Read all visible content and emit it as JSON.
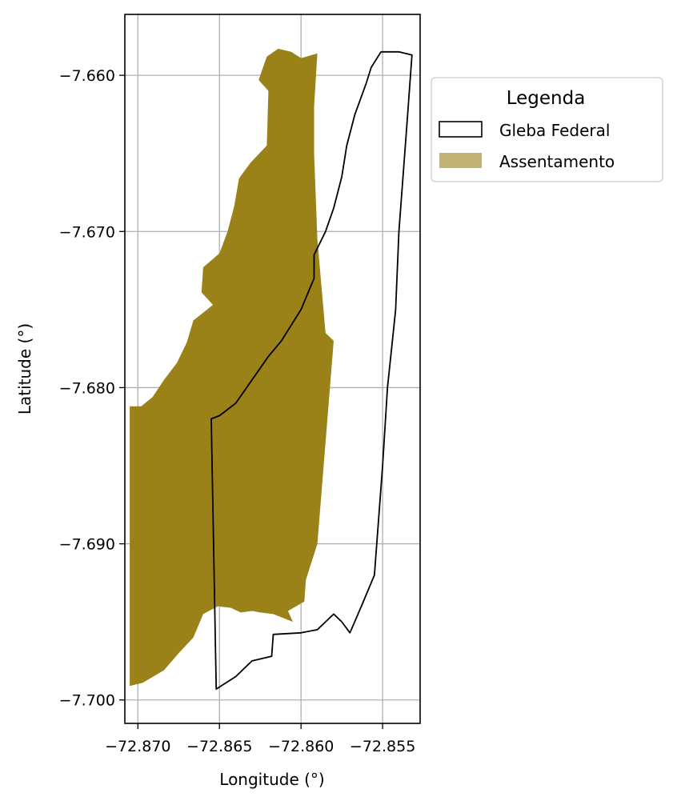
{
  "chart_data": {
    "type": "map",
    "xlabel": "Longitude (°)",
    "ylabel": "Latitude (°)",
    "xlim": [
      -72.8708,
      -72.8527
    ],
    "ylim": [
      -7.7015,
      -7.6561
    ],
    "x_ticks": [
      {
        "value": -72.87,
        "label": "−72.870"
      },
      {
        "value": -72.865,
        "label": "−72.865"
      },
      {
        "value": -72.86,
        "label": "−72.860"
      },
      {
        "value": -72.855,
        "label": "−72.855"
      }
    ],
    "y_ticks": [
      {
        "value": -7.66,
        "label": "−7.660"
      },
      {
        "value": -7.67,
        "label": "−7.670"
      },
      {
        "value": -7.68,
        "label": "−7.680"
      },
      {
        "value": -7.69,
        "label": "−7.690"
      },
      {
        "value": -7.7,
        "label": "−7.700"
      }
    ],
    "grid": true,
    "legend": {
      "title": "Legenda",
      "placement": "outside-right-top",
      "entries": [
        {
          "label": "Gleba Federal",
          "style": "outline",
          "edge_color": "#000000",
          "face_color": "#ffffff"
        },
        {
          "label": "Assentamento",
          "style": "fill",
          "face_color": "#c0b274"
        }
      ]
    },
    "layers": [
      {
        "name": "Assentamento",
        "fill": "#9a8219",
        "stroke": "none",
        "coords": [
          [
            -72.859,
            -7.6586
          ],
          [
            -72.86,
            -7.6589
          ],
          [
            -72.8606,
            -7.6585
          ],
          [
            -72.8614,
            -7.6583
          ],
          [
            -72.8621,
            -7.6588
          ],
          [
            -72.8626,
            -7.6603
          ],
          [
            -72.862,
            -7.661
          ],
          [
            -72.8621,
            -7.6645
          ],
          [
            -72.8631,
            -7.6656
          ],
          [
            -72.8638,
            -7.6666
          ],
          [
            -72.8641,
            -7.6684
          ],
          [
            -72.8645,
            -7.67
          ],
          [
            -72.865,
            -7.6714
          ],
          [
            -72.866,
            -7.6723
          ],
          [
            -72.8661,
            -7.6739
          ],
          [
            -72.8654,
            -7.6747
          ],
          [
            -72.8666,
            -7.6757
          ],
          [
            -72.867,
            -7.6771
          ],
          [
            -72.8676,
            -7.6784
          ],
          [
            -72.8684,
            -7.6795
          ],
          [
            -72.8691,
            -7.6806
          ],
          [
            -72.8698,
            -7.6812
          ],
          [
            -72.8705,
            -7.6812
          ],
          [
            -72.8705,
            -7.6991
          ],
          [
            -72.8697,
            -7.6989
          ],
          [
            -72.8684,
            -7.6981
          ],
          [
            -72.8675,
            -7.697
          ],
          [
            -72.8666,
            -7.696
          ],
          [
            -72.866,
            -7.6945
          ],
          [
            -72.8651,
            -7.694
          ],
          [
            -72.8643,
            -7.6941
          ],
          [
            -72.8637,
            -7.6944
          ],
          [
            -72.863,
            -7.6943
          ],
          [
            -72.8625,
            -7.6944
          ],
          [
            -72.8617,
            -7.6945
          ],
          [
            -72.8605,
            -7.695
          ],
          [
            -72.8608,
            -7.6943
          ],
          [
            -72.8598,
            -7.6937
          ],
          [
            -72.8597,
            -7.6923
          ],
          [
            -72.859,
            -7.69
          ],
          [
            -72.858,
            -7.677
          ],
          [
            -72.8585,
            -7.6765
          ],
          [
            -72.859,
            -7.6705
          ],
          [
            -72.8592,
            -7.665
          ],
          [
            -72.8592,
            -7.662
          ],
          [
            -72.859,
            -7.6586
          ]
        ]
      },
      {
        "name": "Gleba Federal",
        "fill": "none",
        "stroke": "#000000",
        "coords": [
          [
            -72.8551,
            -7.6585
          ],
          [
            -72.8545,
            -7.6585
          ],
          [
            -72.854,
            -7.6585
          ],
          [
            -72.8532,
            -7.6587
          ],
          [
            -72.8535,
            -7.663
          ],
          [
            -72.854,
            -7.67
          ],
          [
            -72.8542,
            -7.675
          ],
          [
            -72.8543,
            -7.676
          ],
          [
            -72.8547,
            -7.68
          ],
          [
            -72.855,
            -7.685
          ],
          [
            -72.8555,
            -7.692
          ],
          [
            -72.8563,
            -7.694
          ],
          [
            -72.857,
            -7.6957
          ],
          [
            -72.8575,
            -7.695
          ],
          [
            -72.858,
            -7.6945
          ],
          [
            -72.859,
            -7.6955
          ],
          [
            -72.86,
            -7.6957
          ],
          [
            -72.8617,
            -7.6958
          ],
          [
            -72.8618,
            -7.6972
          ],
          [
            -72.863,
            -7.6975
          ],
          [
            -72.864,
            -7.6985
          ],
          [
            -72.8652,
            -7.6993
          ],
          [
            -72.8655,
            -7.682
          ],
          [
            -72.865,
            -7.6818
          ],
          [
            -72.864,
            -7.681
          ],
          [
            -72.863,
            -7.6795
          ],
          [
            -72.862,
            -7.678
          ],
          [
            -72.8612,
            -7.677
          ],
          [
            -72.86,
            -7.675
          ],
          [
            -72.8592,
            -7.673
          ],
          [
            -72.8592,
            -7.6715
          ],
          [
            -72.8585,
            -7.67
          ],
          [
            -72.858,
            -7.6685
          ],
          [
            -72.8575,
            -7.6665
          ],
          [
            -72.8572,
            -7.6645
          ],
          [
            -72.8567,
            -7.6625
          ],
          [
            -72.856,
            -7.6605
          ],
          [
            -72.8557,
            -7.6595
          ],
          [
            -72.8551,
            -7.6585
          ]
        ]
      }
    ]
  }
}
